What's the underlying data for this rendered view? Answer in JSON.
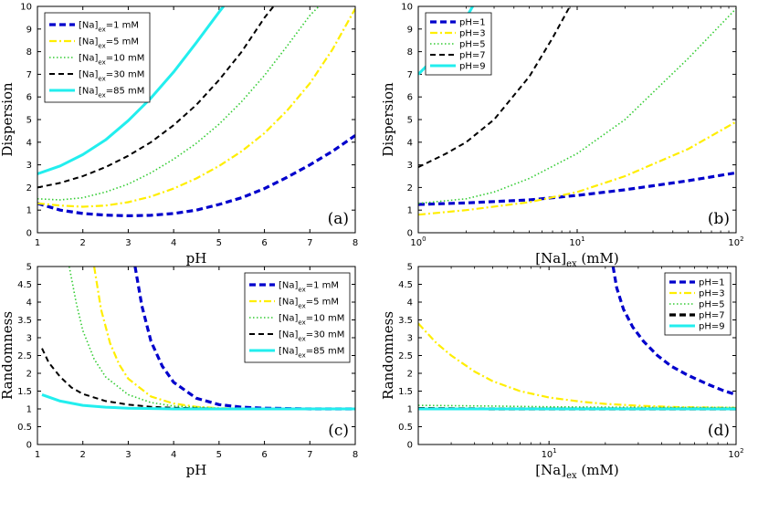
{
  "chart_data": [
    {
      "id": "a",
      "type": "line",
      "panel_label": "(a)",
      "xlabel": "pH",
      "ylabel": "Dispersion",
      "xscale": "linear",
      "xlim": [
        1,
        8
      ],
      "ylim": [
        0,
        10
      ],
      "xticks": [
        1,
        2,
        3,
        4,
        5,
        6,
        7,
        8
      ],
      "xtick_labels": [
        "1",
        "2",
        "3",
        "4",
        "5",
        "6",
        "7",
        "8"
      ],
      "yticks": [
        0,
        1,
        2,
        3,
        4,
        5,
        6,
        7,
        8,
        9,
        10
      ],
      "ytick_labels": [
        "0",
        "1",
        "2",
        "3",
        "4",
        "5",
        "6",
        "7",
        "8",
        "9",
        "10"
      ],
      "legend_position": "top-left",
      "series": [
        {
          "name": "[Na]ex=1 mM",
          "legend": {
            "pre": "[Na]",
            "sub": "ex",
            "post": "=1 mM"
          },
          "color": "#0000cc",
          "style": "dashed-thick",
          "x": [
            1,
            1.5,
            2,
            2.5,
            3,
            3.5,
            4,
            4.5,
            5,
            5.5,
            6,
            6.5,
            7,
            7.5,
            8
          ],
          "y": [
            1.3,
            1.0,
            0.85,
            0.78,
            0.75,
            0.77,
            0.85,
            1.0,
            1.25,
            1.55,
            1.95,
            2.45,
            3.0,
            3.6,
            4.3
          ]
        },
        {
          "name": "[Na]ex=5 mM",
          "legend": {
            "pre": "[Na]",
            "sub": "ex",
            "post": "=5 mM"
          },
          "color": "#ffee00",
          "style": "dashdot",
          "x": [
            1,
            1.5,
            2,
            2.5,
            3,
            3.5,
            4,
            4.5,
            5,
            5.5,
            6,
            6.5,
            7,
            7.5,
            8
          ],
          "y": [
            1.3,
            1.2,
            1.15,
            1.2,
            1.35,
            1.6,
            1.95,
            2.4,
            2.95,
            3.6,
            4.4,
            5.4,
            6.6,
            8.1,
            9.9
          ]
        },
        {
          "name": "[Na]ex=10 mM",
          "legend": {
            "pre": "[Na]",
            "sub": "ex",
            "post": "=10 mM"
          },
          "color": "#33cc33",
          "style": "dotted",
          "x": [
            1,
            1.5,
            2,
            2.5,
            3,
            3.5,
            4,
            4.5,
            5,
            5.5,
            6,
            6.5,
            7,
            7.2
          ],
          "y": [
            1.5,
            1.45,
            1.55,
            1.8,
            2.15,
            2.65,
            3.25,
            3.95,
            4.8,
            5.8,
            6.95,
            8.25,
            9.6,
            10
          ]
        },
        {
          "name": "[Na]ex=30 mM",
          "legend": {
            "pre": "[Na]",
            "sub": "ex",
            "post": "=30 mM"
          },
          "color": "#000000",
          "style": "dashed",
          "x": [
            1,
            1.5,
            2,
            2.5,
            3,
            3.5,
            4,
            4.5,
            5,
            5.5,
            6,
            6.2
          ],
          "y": [
            2.0,
            2.2,
            2.5,
            2.9,
            3.4,
            4.0,
            4.75,
            5.65,
            6.75,
            8.0,
            9.5,
            10
          ]
        },
        {
          "name": "[Na]ex=85 mM",
          "legend": {
            "pre": "[Na]",
            "sub": "ex",
            "post": "=85 mM"
          },
          "color": "#22eeee",
          "style": "solid-thick",
          "x": [
            1,
            1.5,
            2,
            2.5,
            3,
            3.5,
            4,
            4.5,
            5,
            5.1
          ],
          "y": [
            2.6,
            2.95,
            3.45,
            4.1,
            4.95,
            5.95,
            7.1,
            8.4,
            9.75,
            10
          ]
        }
      ]
    },
    {
      "id": "b",
      "type": "line",
      "panel_label": "(b)",
      "xlabel": "[Na]ex (mM)",
      "xlabel_parts": {
        "pre": "[Na]",
        "sub": "ex",
        "post": " (mM)"
      },
      "ylabel": "Dispersion",
      "xscale": "log",
      "xlim": [
        1,
        100
      ],
      "ylim": [
        0,
        10
      ],
      "xticks": [
        1,
        10,
        100
      ],
      "xtick_labels": [
        {
          "base": "10",
          "exp": "0"
        },
        {
          "base": "10",
          "exp": "1"
        },
        {
          "base": "10",
          "exp": "2"
        }
      ],
      "yticks": [
        0,
        1,
        2,
        3,
        4,
        5,
        6,
        7,
        8,
        9,
        10
      ],
      "ytick_labels": [
        "0",
        "1",
        "2",
        "3",
        "4",
        "5",
        "6",
        "7",
        "8",
        "9",
        "10"
      ],
      "legend_position": "top-left",
      "series": [
        {
          "name": "pH=1",
          "legend": {
            "pre": "pH=1"
          },
          "color": "#0000cc",
          "style": "dashed-thick",
          "x": [
            1,
            2,
            5,
            10,
            20,
            50,
            100
          ],
          "y": [
            1.25,
            1.32,
            1.45,
            1.65,
            1.9,
            2.3,
            2.65
          ]
        },
        {
          "name": "pH=3",
          "legend": {
            "pre": "pH=3"
          },
          "color": "#ffee00",
          "style": "dashdot",
          "x": [
            1,
            2,
            5,
            10,
            20,
            50,
            100
          ],
          "y": [
            0.8,
            1.0,
            1.35,
            1.8,
            2.5,
            3.7,
            4.9
          ]
        },
        {
          "name": "pH=5",
          "legend": {
            "pre": "pH=5"
          },
          "color": "#33cc33",
          "style": "dotted",
          "x": [
            1,
            2,
            3,
            5,
            10,
            20,
            50,
            100
          ],
          "y": [
            1.3,
            1.5,
            1.8,
            2.4,
            3.5,
            5.0,
            7.7,
            9.9
          ]
        },
        {
          "name": "pH=7",
          "legend": {
            "pre": "pH=7"
          },
          "color": "#000000",
          "style": "dashed",
          "x": [
            1,
            1.5,
            2,
            3,
            5,
            7,
            9
          ],
          "y": [
            2.9,
            3.5,
            4.0,
            5.0,
            6.9,
            8.6,
            10
          ]
        },
        {
          "name": "pH=9",
          "legend": {
            "pre": "pH=9"
          },
          "color": "#22eeee",
          "style": "solid-thick",
          "x": [
            1,
            1.3,
            1.6,
            2,
            2.2
          ],
          "y": [
            7.0,
            7.8,
            8.6,
            9.5,
            10
          ]
        }
      ]
    },
    {
      "id": "c",
      "type": "line",
      "panel_label": "(c)",
      "xlabel": "pH",
      "ylabel": "Randomness",
      "xscale": "linear",
      "xlim": [
        1,
        8
      ],
      "ylim": [
        0,
        5
      ],
      "xticks": [
        1,
        2,
        3,
        4,
        5,
        6,
        7,
        8
      ],
      "xtick_labels": [
        "1",
        "2",
        "3",
        "4",
        "5",
        "6",
        "7",
        "8"
      ],
      "yticks": [
        0,
        0.5,
        1,
        1.5,
        2,
        2.5,
        3,
        3.5,
        4,
        4.5,
        5
      ],
      "ytick_labels": [
        "0",
        "0.5",
        "1",
        "1.5",
        "2",
        "2.5",
        "3",
        "3.5",
        "4",
        "4.5",
        "5"
      ],
      "legend_position": "top-right",
      "series": [
        {
          "name": "[Na]ex=1 mM",
          "legend": {
            "pre": "[Na]",
            "sub": "ex",
            "post": "=1 mM"
          },
          "color": "#0000cc",
          "style": "dashed-thick",
          "x": [
            3.15,
            3.3,
            3.5,
            3.75,
            4,
            4.5,
            5,
            5.5,
            6,
            7,
            8
          ],
          "y": [
            5,
            3.9,
            2.9,
            2.2,
            1.75,
            1.3,
            1.12,
            1.05,
            1.02,
            1.0,
            1.0
          ]
        },
        {
          "name": "[Na]ex=5 mM",
          "legend": {
            "pre": "[Na]",
            "sub": "ex",
            "post": "=5 mM"
          },
          "color": "#ffee00",
          "style": "dashdot",
          "x": [
            2.25,
            2.4,
            2.6,
            2.8,
            3,
            3.5,
            4,
            4.5,
            5,
            6,
            8
          ],
          "y": [
            5,
            3.8,
            2.85,
            2.25,
            1.85,
            1.35,
            1.15,
            1.06,
            1.02,
            1.0,
            1.0
          ]
        },
        {
          "name": "[Na]ex=10 mM",
          "legend": {
            "pre": "[Na]",
            "sub": "ex",
            "post": "=10 mM"
          },
          "color": "#33cc33",
          "style": "dotted",
          "x": [
            1.7,
            1.85,
            2,
            2.25,
            2.5,
            3,
            3.5,
            4,
            5,
            6,
            8
          ],
          "y": [
            5,
            4.0,
            3.2,
            2.4,
            1.9,
            1.4,
            1.18,
            1.08,
            1.02,
            1.0,
            1.0
          ]
        },
        {
          "name": "[Na]ex=30 mM",
          "legend": {
            "pre": "[Na]",
            "sub": "ex",
            "post": "=30 mM"
          },
          "color": "#000000",
          "style": "dashed",
          "x": [
            1.1,
            1.25,
            1.5,
            1.75,
            2,
            2.5,
            3,
            3.5,
            4,
            5,
            6,
            8
          ],
          "y": [
            2.7,
            2.3,
            1.9,
            1.6,
            1.42,
            1.22,
            1.12,
            1.06,
            1.03,
            1.01,
            1.0,
            1.0
          ]
        },
        {
          "name": "[Na]ex=85 mM",
          "legend": {
            "pre": "[Na]",
            "sub": "ex",
            "post": "=85 mM"
          },
          "color": "#22eeee",
          "style": "solid-thick",
          "x": [
            1.1,
            1.5,
            2,
            2.5,
            3,
            3.5,
            4,
            5,
            6,
            8
          ],
          "y": [
            1.4,
            1.22,
            1.1,
            1.05,
            1.02,
            1.01,
            1.0,
            1.0,
            1.0,
            1.0
          ]
        }
      ]
    },
    {
      "id": "d",
      "type": "line",
      "panel_label": "(d)",
      "xlabel": "[Na]ex (mM)",
      "xlabel_parts": {
        "pre": "[Na]",
        "sub": "ex",
        "post": " (mM)"
      },
      "ylabel": "Randomness",
      "xscale": "log",
      "xlim": [
        2,
        100
      ],
      "ylim": [
        0,
        5
      ],
      "xticks": [
        10,
        100
      ],
      "xtick_labels": [
        {
          "base": "10",
          "exp": "1"
        },
        {
          "base": "10",
          "exp": "2"
        }
      ],
      "yticks": [
        0,
        0.5,
        1,
        1.5,
        2,
        2.5,
        3,
        3.5,
        4,
        4.5,
        5
      ],
      "ytick_labels": [
        "0",
        "0.5",
        "1",
        "1.5",
        "2",
        "2.5",
        "3",
        "3.5",
        "4",
        "4.5",
        "5"
      ],
      "legend_position": "top-right",
      "series": [
        {
          "name": "pH=1",
          "legend": {
            "pre": "pH=1"
          },
          "color": "#0000cc",
          "style": "dashed-thick",
          "x": [
            22,
            23,
            25,
            28,
            32,
            38,
            45,
            55,
            70,
            85,
            100
          ],
          "y": [
            5,
            4.4,
            3.8,
            3.3,
            2.9,
            2.5,
            2.2,
            1.95,
            1.7,
            1.52,
            1.4
          ]
        },
        {
          "name": "pH=3",
          "legend": {
            "pre": "pH=3"
          },
          "color": "#ffee00",
          "style": "dashdot",
          "x": [
            2,
            2.5,
            3,
            4,
            5,
            7,
            10,
            15,
            20,
            30,
            50,
            100
          ],
          "y": [
            3.4,
            2.85,
            2.5,
            2.05,
            1.78,
            1.5,
            1.32,
            1.2,
            1.14,
            1.09,
            1.05,
            1.03
          ]
        },
        {
          "name": "pH=5",
          "legend": {
            "pre": "pH=5"
          },
          "color": "#33cc33",
          "style": "dotted",
          "x": [
            2,
            5,
            10,
            20,
            50,
            100
          ],
          "y": [
            1.1,
            1.08,
            1.06,
            1.05,
            1.04,
            1.04
          ]
        },
        {
          "name": "pH=7",
          "legend": {
            "pre": "pH=7"
          },
          "color": "#000000",
          "style": "dashed-thick",
          "x": [
            2,
            5,
            10,
            20,
            50,
            100
          ],
          "y": [
            1.01,
            1.0,
            1.0,
            1.0,
            1.0,
            1.0
          ]
        },
        {
          "name": "pH=9",
          "legend": {
            "pre": "pH=9"
          },
          "color": "#22eeee",
          "style": "solid-thick",
          "x": [
            2,
            5,
            10,
            20,
            50,
            100
          ],
          "y": [
            1.0,
            1.0,
            1.0,
            1.0,
            1.0,
            1.0
          ]
        }
      ]
    }
  ]
}
